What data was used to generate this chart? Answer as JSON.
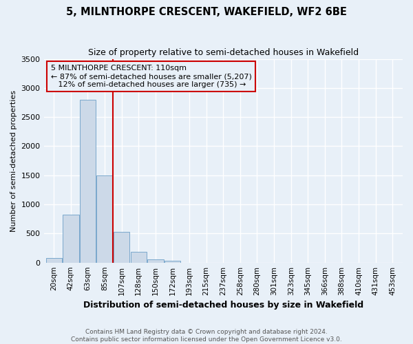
{
  "title": "5, MILNTHORPE CRESCENT, WAKEFIELD, WF2 6BE",
  "subtitle": "Size of property relative to semi-detached houses in Wakefield",
  "xlabel": "Distribution of semi-detached houses by size in Wakefield",
  "ylabel": "Number of semi-detached properties",
  "footnote": "Contains HM Land Registry data © Crown copyright and database right 2024.\nContains public sector information licensed under the Open Government Licence v3.0.",
  "categories": [
    "20sqm",
    "42sqm",
    "63sqm",
    "85sqm",
    "107sqm",
    "128sqm",
    "150sqm",
    "172sqm",
    "193sqm",
    "215sqm",
    "237sqm",
    "258sqm",
    "280sqm",
    "301sqm",
    "323sqm",
    "345sqm",
    "366sqm",
    "388sqm",
    "410sqm",
    "431sqm",
    "453sqm"
  ],
  "bar_values": [
    80,
    820,
    2800,
    1500,
    530,
    180,
    60,
    30,
    0,
    0,
    0,
    0,
    0,
    0,
    0,
    0,
    0,
    0,
    0,
    0,
    0
  ],
  "bar_color": "#ccd9e8",
  "bar_edge_color": "#7aa8cc",
  "property_line_x": 3.5,
  "property_line_color": "#cc0000",
  "annotation_text": "5 MILNTHORPE CRESCENT: 110sqm\n← 87% of semi-detached houses are smaller (5,207)\n   12% of semi-detached houses are larger (735) →",
  "annotation_box_color": "#cc0000",
  "ylim": [
    0,
    3500
  ],
  "yticks": [
    0,
    500,
    1000,
    1500,
    2000,
    2500,
    3000,
    3500
  ],
  "background_color": "#e8f0f8",
  "grid_color": "#ffffff",
  "title_fontsize": 10.5,
  "subtitle_fontsize": 9
}
